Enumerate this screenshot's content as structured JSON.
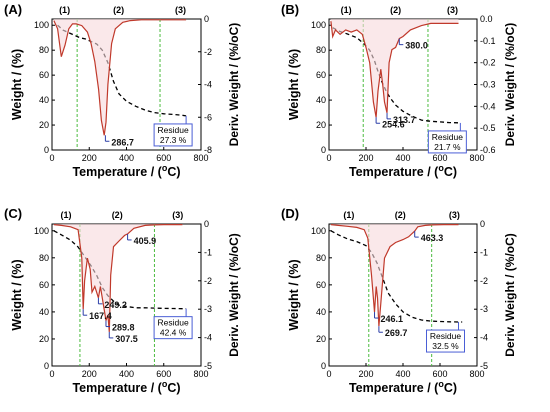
{
  "figure": {
    "panels": [
      {
        "id": "A",
        "label": "(A)"
      },
      {
        "id": "B",
        "label": "(B)"
      },
      {
        "id": "C",
        "label": "(C)"
      },
      {
        "id": "D",
        "label": "(D)"
      }
    ]
  },
  "chart_data": [
    {
      "type": "line",
      "panel": "(A)",
      "xlabel": "Temperature / (oC)",
      "ylabel": "Weight / (%)",
      "y2label": "Deriv. Weight / (%/oC)",
      "xlim": [
        0,
        800
      ],
      "ylim": [
        0,
        105
      ],
      "y2lim": [
        -8,
        0
      ],
      "xticks": [
        0,
        200,
        400,
        600,
        800
      ],
      "yticks": [
        0,
        20,
        40,
        60,
        80,
        100
      ],
      "y2ticks": [
        0,
        -2,
        -4,
        -6,
        -8
      ],
      "stages": [
        "(1)",
        "(2)",
        "(3)"
      ],
      "stage_boundaries_x": [
        135,
        580
      ],
      "series": [
        {
          "axis": "left",
          "style": "dashed-black",
          "x": [
            30,
            60,
            90,
            120,
            150,
            180,
            210,
            240,
            270,
            300,
            330,
            360,
            400,
            450,
            500,
            550,
            600,
            650,
            700,
            720
          ],
          "y": [
            100,
            96,
            94,
            92,
            90,
            89,
            87,
            85,
            80,
            70,
            55,
            45,
            39,
            35,
            32,
            30,
            29,
            28.5,
            27.8,
            27.3
          ]
        },
        {
          "axis": "right",
          "style": "solid-brown",
          "x": [
            10,
            30,
            50,
            70,
            90,
            110,
            130,
            160,
            190,
            210,
            230,
            250,
            265,
            280,
            290,
            300,
            320,
            340,
            380,
            420,
            480,
            540,
            600,
            650,
            700,
            720
          ],
          "y": [
            -0.1,
            -0.6,
            -2.3,
            -1.6,
            -0.6,
            -0.3,
            -0.3,
            -0.4,
            -0.8,
            -1.5,
            -2.6,
            -4.3,
            -6.2,
            -7.1,
            -6.3,
            -4.0,
            -1.5,
            -0.6,
            -0.2,
            -0.1,
            -0.05,
            -0.05,
            -0.05,
            -0.05,
            -0.05,
            -0.05
          ]
        }
      ],
      "annotations": [
        {
          "text": "286.7",
          "x": 286.7,
          "y2": -7.1
        }
      ],
      "residue": {
        "label": "Residue",
        "value": "27.3 %",
        "x": 720,
        "y": 27.3
      }
    },
    {
      "type": "line",
      "panel": "(B)",
      "xlabel": "Temperature / (oC)",
      "ylabel": "Weight / (%)",
      "y2label": "Deriv. Weight / (%/oC)",
      "xlim": [
        0,
        800
      ],
      "ylim": [
        0,
        105
      ],
      "y2lim": [
        -0.6,
        0
      ],
      "xticks": [
        0,
        200,
        400,
        600,
        800
      ],
      "yticks": [
        0,
        20,
        40,
        60,
        80,
        100
      ],
      "y2ticks": [
        "0.0",
        "-0.1",
        "-0.2",
        "-0.3",
        "-0.4",
        "-0.5",
        "-0.6"
      ],
      "stages": [
        "(1)",
        "(2)",
        "(3)"
      ],
      "stage_boundaries_x": [
        185,
        535
      ],
      "series": [
        {
          "axis": "left",
          "style": "dashed-black",
          "x": [
            20,
            60,
            100,
            150,
            190,
            220,
            245,
            265,
            285,
            310,
            330,
            360,
            400,
            450,
            500,
            550,
            600,
            650,
            700,
            710
          ],
          "y": [
            98,
            95,
            93,
            90,
            85,
            80,
            72,
            63,
            55,
            47,
            42,
            36,
            31,
            27,
            24,
            23,
            22.5,
            22,
            21.8,
            21.7
          ]
        },
        {
          "axis": "right",
          "style": "solid-brown",
          "x": [
            10,
            20,
            35,
            60,
            90,
            120,
            150,
            180,
            200,
            220,
            240,
            254.6,
            265,
            280,
            290,
            300,
            313.7,
            325,
            340,
            360,
            380,
            400,
            440,
            500,
            550,
            600,
            650,
            700
          ],
          "y": [
            -0.01,
            -0.08,
            -0.05,
            -0.07,
            -0.05,
            -0.06,
            -0.05,
            -0.07,
            -0.13,
            -0.2,
            -0.38,
            -0.45,
            -0.33,
            -0.23,
            -0.3,
            -0.38,
            -0.43,
            -0.2,
            -0.14,
            -0.13,
            -0.09,
            -0.08,
            -0.05,
            -0.03,
            -0.02,
            -0.02,
            -0.02,
            -0.02
          ]
        }
      ],
      "annotations": [
        {
          "text": "254.6",
          "x": 254.6,
          "y2": -0.45
        },
        {
          "text": "313.7",
          "x": 313.7,
          "y2": -0.43
        },
        {
          "text": "380.0",
          "x": 380,
          "y2": -0.09
        }
      ],
      "residue": {
        "label": "Residue",
        "value": "21.7 %",
        "x": 710,
        "y": 21.7
      }
    },
    {
      "type": "line",
      "panel": "(C)",
      "xlabel": "Temperature / (oC)",
      "ylabel": "Weight / (%)",
      "y2label": "Deriv. Weight / (%/oC)",
      "xlim": [
        0,
        800
      ],
      "ylim": [
        0,
        105
      ],
      "y2lim": [
        -5,
        0
      ],
      "xticks": [
        0,
        200,
        400,
        600,
        800
      ],
      "yticks": [
        0,
        20,
        40,
        60,
        80,
        100
      ],
      "y2ticks": [
        0,
        -1,
        -2,
        -3,
        -4,
        -5
      ],
      "stages": [
        "(1)",
        "(2)",
        "(3)"
      ],
      "stage_boundaries_x": [
        150,
        550
      ],
      "series": [
        {
          "axis": "left",
          "style": "dashed-black",
          "x": [
            10,
            50,
            100,
            140,
            160,
            180,
            210,
            240,
            270,
            300,
            330,
            360,
            400,
            450,
            500,
            550,
            600,
            650,
            700,
            720
          ],
          "y": [
            100,
            97,
            93,
            88,
            84,
            80,
            74,
            67,
            58,
            52,
            48,
            45,
            44,
            43,
            43,
            42.8,
            42.6,
            42.5,
            42.4,
            42.4
          ]
        },
        {
          "axis": "right",
          "style": "solid-brown",
          "x": [
            10,
            50,
            100,
            140,
            160,
            167.4,
            175,
            190,
            205,
            215,
            230,
            249.2,
            260,
            275,
            289.8,
            300,
            307.5,
            315,
            330,
            360,
            390,
            405.9,
            440,
            500,
            550,
            600,
            650,
            700
          ],
          "y": [
            -0.02,
            -0.05,
            -0.1,
            -0.2,
            -1.2,
            -3.0,
            -2.0,
            -1.2,
            -1.6,
            -2.4,
            -2.2,
            -2.6,
            -2.2,
            -2.8,
            -3.4,
            -3.2,
            -3.8,
            -1.8,
            -0.8,
            -0.6,
            -0.4,
            -0.35,
            -0.15,
            -0.05,
            -0.03,
            -0.02,
            -0.02,
            -0.02
          ]
        }
      ],
      "annotations": [
        {
          "text": "167.4",
          "x": 167.4,
          "y2": -3.0
        },
        {
          "text": "249.2",
          "x": 249.2,
          "y2": -2.6
        },
        {
          "text": "289.8",
          "x": 289.8,
          "y2": -3.4
        },
        {
          "text": "307.5",
          "x": 307.5,
          "y2": -3.8
        },
        {
          "text": "405.9",
          "x": 405.9,
          "y2": -0.35
        }
      ],
      "residue": {
        "label": "Residue",
        "value": "42.4 %",
        "x": 720,
        "y": 42.4
      }
    },
    {
      "type": "line",
      "panel": "(D)",
      "xlabel": "Temperature / (oC)",
      "ylabel": "Weight / (%)",
      "y2label": "Deriv. Weight / (%/oC)",
      "xlim": [
        0,
        800
      ],
      "ylim": [
        0,
        105
      ],
      "y2lim": [
        -5,
        0
      ],
      "xticks": [
        0,
        200,
        400,
        600,
        800
      ],
      "yticks": [
        0,
        20,
        40,
        60,
        80,
        100
      ],
      "y2ticks": [
        0,
        -1,
        -2,
        -3,
        -4,
        -5
      ],
      "stages": [
        "(1)",
        "(2)",
        "(3)"
      ],
      "stage_boundaries_x": [
        215,
        555
      ],
      "series": [
        {
          "axis": "left",
          "style": "dashed-black",
          "x": [
            10,
            50,
            100,
            150,
            200,
            230,
            260,
            290,
            320,
            360,
            400,
            450,
            500,
            550,
            600,
            650,
            700,
            720
          ],
          "y": [
            100,
            97,
            94,
            92,
            89,
            84,
            76,
            65,
            54,
            46,
            40,
            36,
            34,
            33.2,
            32.9,
            32.7,
            32.5,
            32.5
          ]
        },
        {
          "axis": "right",
          "style": "solid-brown",
          "x": [
            10,
            50,
            100,
            150,
            190,
            210,
            230,
            246.1,
            255,
            262,
            269.7,
            280,
            300,
            330,
            360,
            400,
            430,
            463.3,
            480,
            520,
            560,
            620,
            680,
            700
          ],
          "y": [
            -0.02,
            -0.05,
            -0.08,
            -0.12,
            -0.2,
            -0.5,
            -1.8,
            -3.1,
            -2.2,
            -2.6,
            -3.6,
            -2.8,
            -1.2,
            -0.8,
            -0.65,
            -0.55,
            -0.45,
            -0.25,
            -0.1,
            -0.05,
            -0.03,
            -0.02,
            -0.02,
            -0.02
          ]
        }
      ],
      "annotations": [
        {
          "text": "246.1",
          "x": 246.1,
          "y2": -3.1
        },
        {
          "text": "269.7",
          "x": 269.7,
          "y2": -3.6
        },
        {
          "text": "463.3",
          "x": 463.3,
          "y2": -0.25
        }
      ],
      "residue": {
        "label": "Residue",
        "value": "32.5 %",
        "x": 700,
        "y": 32.5
      }
    }
  ]
}
